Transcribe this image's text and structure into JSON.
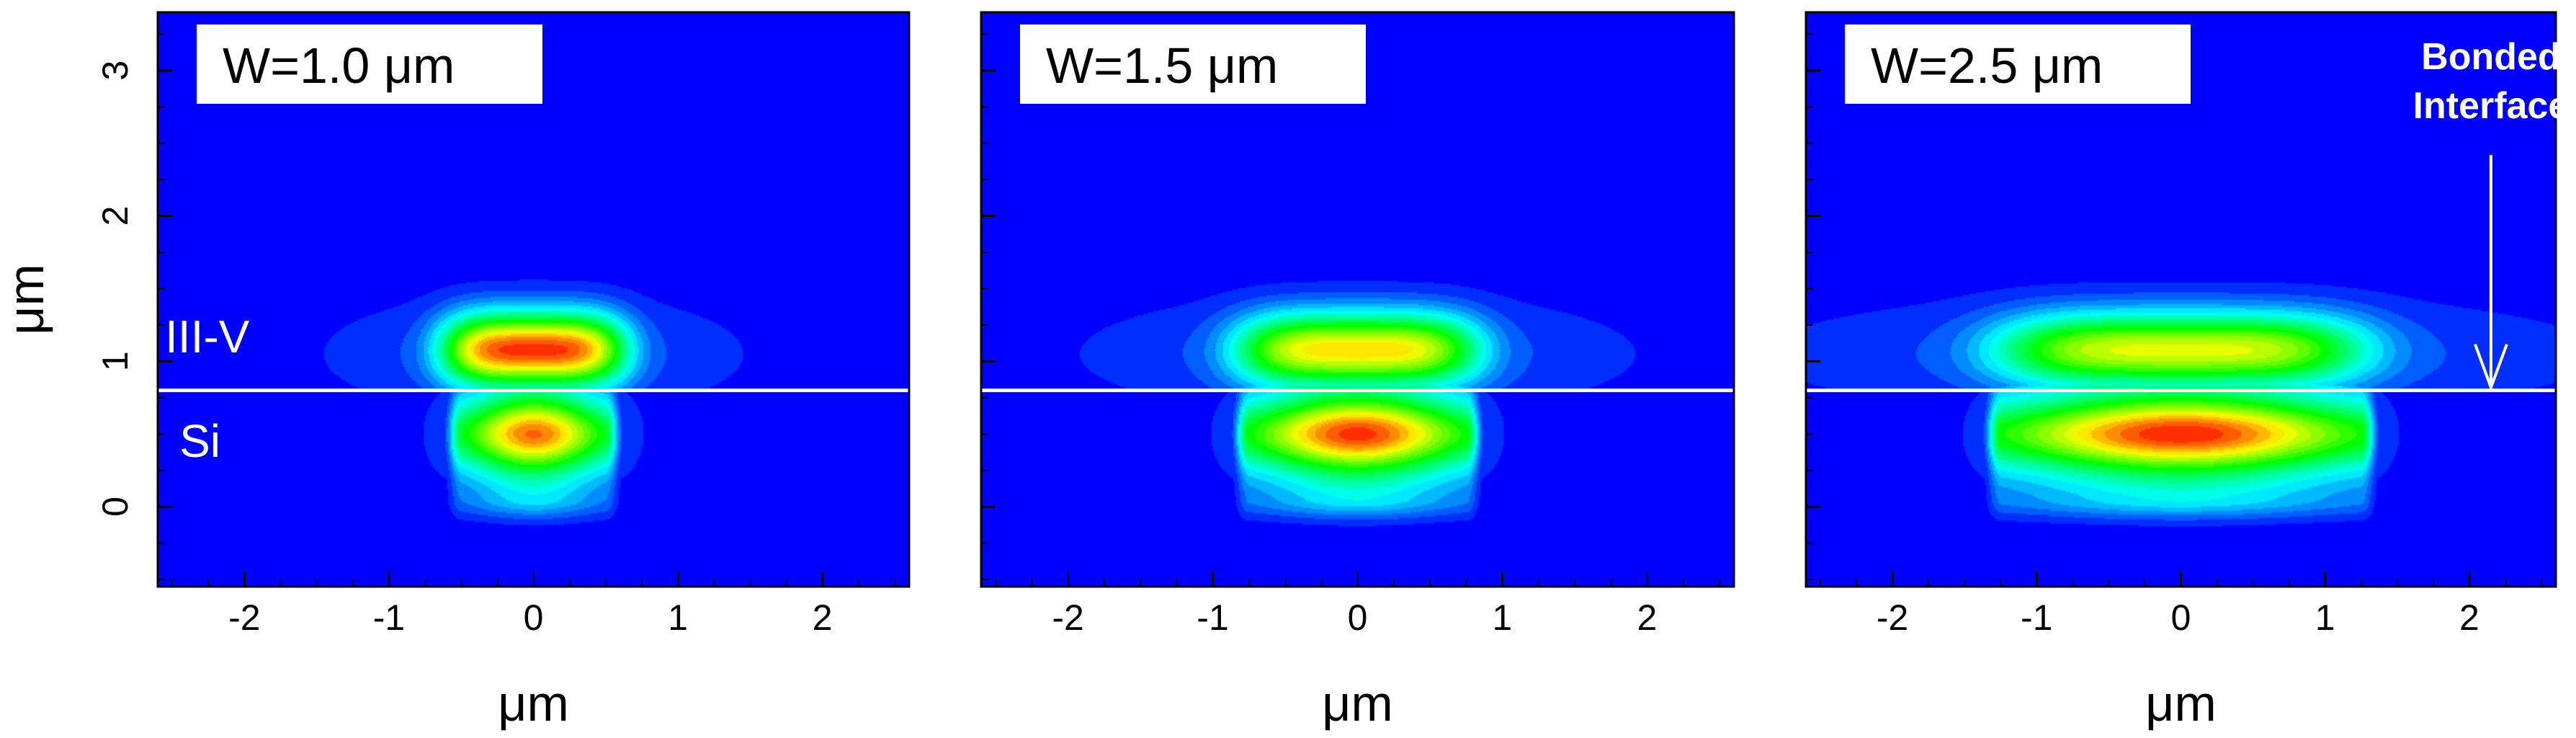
{
  "chart_data": {
    "type": "heatmap",
    "xlim": [
      -2.6,
      2.6
    ],
    "ylim": [
      -0.55,
      3.4
    ],
    "x_ticks": [
      -2,
      -1,
      0,
      1,
      2
    ],
    "x_tick_labels": [
      "-2",
      "-1",
      "0",
      "1",
      "2"
    ],
    "y_ticks": [
      0,
      1,
      2,
      3
    ],
    "y_tick_labels": [
      "0",
      "1",
      "2",
      "3"
    ],
    "xlabel": "μm",
    "ylabel": "μm",
    "interface_y": 0.8,
    "colormap": [
      "#0000ff",
      "#00ffff",
      "#00ff00",
      "#ffff00",
      "#ff0000"
    ],
    "background_color": "#0000ff",
    "interface_line_color": "#ffffff",
    "panels": [
      {
        "title": "W=1.0 μm",
        "width_um": 1.0,
        "region_labels": [
          {
            "text": "III-V",
            "x": -2.55,
            "y": 1.17
          },
          {
            "text": "Si",
            "x": -2.45,
            "y": 0.45
          }
        ]
      },
      {
        "title": "W=1.5 μm",
        "width_um": 1.5,
        "region_labels": []
      },
      {
        "title": "W=2.5 μm",
        "width_um": 2.5,
        "region_labels": [],
        "callout": {
          "text_lines": [
            "Bonded",
            "Interface"
          ],
          "arrow_x": 2.15,
          "arrow_from_y": 2.45,
          "arrow_to_y": 0.8
        }
      }
    ]
  }
}
